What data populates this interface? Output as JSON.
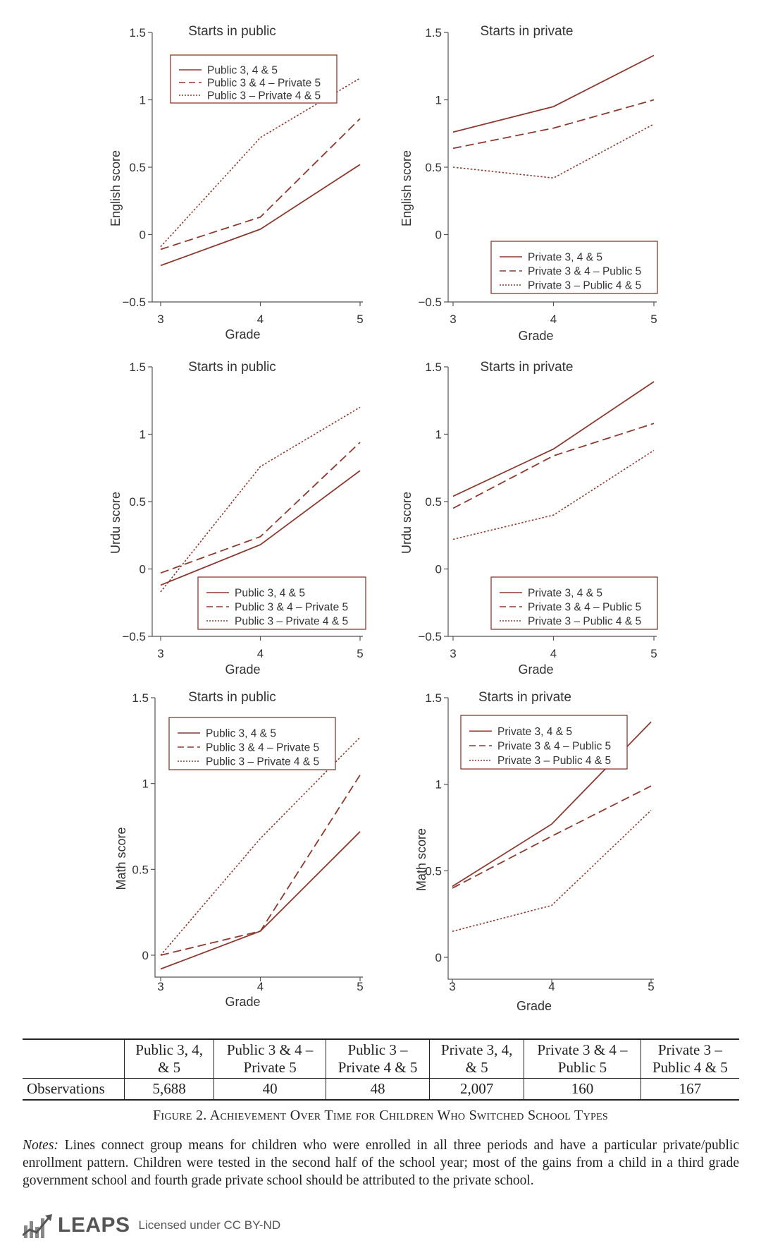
{
  "colors": {
    "line": "#8b3a30",
    "legend_text": "#8b3a30",
    "axis": "#555555"
  },
  "chart_data": [
    {
      "type": "line",
      "title": "Starts in public",
      "xlabel": "Grade",
      "ylabel": "English score",
      "x": [
        3,
        4,
        5
      ],
      "xticks": [
        "3",
        "4",
        "5"
      ],
      "yticks": [
        "−0.5",
        "0",
        "0.5",
        "1",
        "1.5"
      ],
      "ylim": [
        -0.5,
        1.5
      ],
      "legend_position": "top-left",
      "series": [
        {
          "name": "Public 3, 4 & 5",
          "style": "solid",
          "values": [
            -0.23,
            0.04,
            0.52
          ]
        },
        {
          "name": "Public 3 & 4 – Private 5",
          "style": "dashed",
          "values": [
            -0.11,
            0.13,
            0.86
          ]
        },
        {
          "name": "Public 3 – Private 4 & 5",
          "style": "dotted",
          "values": [
            -0.09,
            0.72,
            1.16
          ]
        }
      ]
    },
    {
      "type": "line",
      "title": "Starts in private",
      "xlabel": "Grade",
      "ylabel": "English score",
      "x": [
        3,
        4,
        5
      ],
      "xticks": [
        "3",
        "4",
        "5"
      ],
      "yticks": [
        "−0.5",
        "0",
        "0.5",
        "1",
        "1.5"
      ],
      "ylim": [
        -0.5,
        1.5
      ],
      "legend_position": "bottom-right",
      "series": [
        {
          "name": "Private 3, 4 & 5",
          "style": "solid",
          "values": [
            0.76,
            0.95,
            1.33
          ]
        },
        {
          "name": "Private 3 & 4 – Public 5",
          "style": "dashed",
          "values": [
            0.64,
            0.79,
            1.0
          ]
        },
        {
          "name": "Private 3 – Public 4 & 5",
          "style": "dotted",
          "values": [
            0.5,
            0.42,
            0.82
          ]
        }
      ]
    },
    {
      "type": "line",
      "title": "Starts in public",
      "xlabel": "Grade",
      "ylabel": "Urdu score",
      "x": [
        3,
        4,
        5
      ],
      "xticks": [
        "3",
        "4",
        "5"
      ],
      "yticks": [
        "−0.5",
        "0",
        "0.5",
        "1",
        "1.5"
      ],
      "ylim": [
        -0.5,
        1.5
      ],
      "legend_position": "bottom-right",
      "series": [
        {
          "name": "Public 3, 4 & 5",
          "style": "solid",
          "values": [
            -0.12,
            0.18,
            0.73
          ]
        },
        {
          "name": "Public 3 & 4 – Private 5",
          "style": "dashed",
          "values": [
            -0.03,
            0.24,
            0.94
          ]
        },
        {
          "name": "Public 3 – Private 4 & 5",
          "style": "dotted",
          "values": [
            -0.17,
            0.76,
            1.2
          ]
        }
      ]
    },
    {
      "type": "line",
      "title": "Starts in private",
      "xlabel": "Grade",
      "ylabel": "Urdu score",
      "x": [
        3,
        4,
        5
      ],
      "xticks": [
        "3",
        "4",
        "5"
      ],
      "yticks": [
        "−0.5",
        "0",
        "0.5",
        "1",
        "1.5"
      ],
      "ylim": [
        -0.5,
        1.5
      ],
      "legend_position": "bottom-right",
      "series": [
        {
          "name": "Private 3, 4 & 5",
          "style": "solid",
          "values": [
            0.54,
            0.89,
            1.39
          ]
        },
        {
          "name": "Private 3 & 4 – Public 5",
          "style": "dashed",
          "values": [
            0.45,
            0.84,
            1.08
          ]
        },
        {
          "name": "Private 3 – Public 4 & 5",
          "style": "dotted",
          "values": [
            0.22,
            0.4,
            0.88
          ]
        }
      ]
    },
    {
      "type": "line",
      "title": "Starts in public",
      "xlabel": "Grade",
      "ylabel": "Math score",
      "x": [
        3,
        4,
        5
      ],
      "xticks": [
        "3",
        "4",
        "5"
      ],
      "yticks": [
        "0",
        "0.5",
        "1",
        "1.5"
      ],
      "ylim": [
        -0.08,
        1.5
      ],
      "legend_position": "top",
      "series": [
        {
          "name": "Public 3, 4 & 5",
          "style": "solid",
          "values": [
            -0.08,
            0.14,
            0.72
          ]
        },
        {
          "name": "Public 3 & 4 – Private 5",
          "style": "dashed",
          "values": [
            0.0,
            0.14,
            1.05
          ]
        },
        {
          "name": "Public 3 – Private 4 & 5",
          "style": "dotted",
          "values": [
            0.0,
            0.68,
            1.27
          ]
        }
      ]
    },
    {
      "type": "line",
      "title": "Starts in private",
      "xlabel": "Grade",
      "ylabel": "Math score",
      "x": [
        3,
        4,
        5
      ],
      "xticks": [
        "3",
        "4",
        "5"
      ],
      "yticks": [
        "0",
        "0.5",
        "1",
        "1.5"
      ],
      "ylim": [
        -0.08,
        1.5
      ],
      "legend_position": "top-left",
      "series": [
        {
          "name": "Private 3, 4 & 5",
          "style": "solid",
          "values": [
            0.41,
            0.77,
            1.36
          ]
        },
        {
          "name": "Private 3 & 4 – Public 5",
          "style": "dashed",
          "values": [
            0.4,
            0.7,
            0.99
          ]
        },
        {
          "name": "Private 3 – Public 4 & 5",
          "style": "dotted",
          "values": [
            0.15,
            0.3,
            0.85
          ]
        }
      ]
    }
  ],
  "table": {
    "headers": [
      "",
      "Public 3, 4,\n& 5",
      "Public 3 & 4 –\nPrivate 5",
      "Public 3 –\nPrivate 4 & 5",
      "Private 3, 4,\n& 5",
      "Private 3 & 4 –\nPublic 5",
      "Private 3 –\nPublic 4 & 5"
    ],
    "row_label": "Observations",
    "values": [
      "5,688",
      "40",
      "48",
      "2,007",
      "160",
      "167"
    ]
  },
  "caption": "Figure 2. Achievement Over Time for Children Who Switched School Types",
  "notes_label": "Notes:",
  "notes_text": " Lines connect group means for children who were enrolled in all three periods and have a particular private/public enrollment pattern. Children were tested in the second half of the school year; most of the gains from a child in a third grade government school and fourth grade private school should be attributed to the private school.",
  "footer": {
    "logo_text": "LEAPS",
    "license_text": "Licensed under CC BY-ND"
  }
}
